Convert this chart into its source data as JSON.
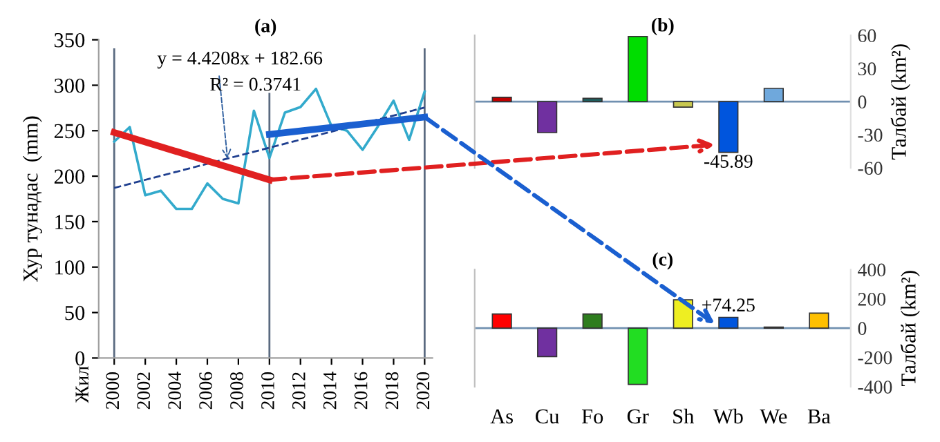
{
  "chart_data": [
    {
      "type": "line",
      "title": "(a)",
      "ylabel": "Хур тунадас  (mm)",
      "series": [
        {
          "color": "#33aacc",
          "line_style": "solid",
          "x": [
            2000,
            2001,
            2002,
            2003,
            2004,
            2005,
            2006,
            2007,
            2008,
            2009,
            2010,
            2011,
            2012,
            2013,
            2014,
            2015,
            2016,
            2017,
            2018,
            2019,
            2020
          ],
          "values": [
            238,
            254,
            179,
            184,
            164,
            164,
            192,
            175,
            170,
            272,
            220,
            270,
            276,
            296,
            255,
            250,
            229,
            255,
            283,
            240,
            293
          ]
        },
        {
          "color": "#1f3f8f",
          "line_style": "dashed",
          "x": [
            2000,
            2020
          ],
          "values": [
            187.1,
            275.5
          ]
        },
        {
          "color": "#e02020",
          "line_style": "solid",
          "x": [
            2000,
            2010
          ],
          "values": [
            248,
            196
          ]
        },
        {
          "color": "#1a5fd0",
          "line_style": "solid",
          "x": [
            2010,
            2020
          ],
          "values": [
            246,
            265
          ]
        }
      ],
      "ref_lines": [
        {
          "axis": "x",
          "value": 2000,
          "color": "#5a6a80"
        },
        {
          "axis": "x",
          "value": 2010,
          "color": "#5a6a80"
        },
        {
          "axis": "x",
          "value": 2020,
          "color": "#5a6a80"
        }
      ],
      "annotations": [
        {
          "text": "y = 4.4208x + 182.66",
          "x": 2007.3,
          "y": 219
        },
        "R² = 0.3741",
        "Жил"
      ],
      "xlim": [
        1999,
        2020.5
      ],
      "ylim": [
        0,
        350
      ],
      "xticks": [
        2000,
        2002,
        2004,
        2006,
        2008,
        2010,
        2012,
        2014,
        2016,
        2018,
        2020
      ],
      "yticks": [
        0,
        50,
        100,
        150,
        200,
        250,
        300,
        350
      ],
      "grid": false,
      "legend": false,
      "marker": "none"
    },
    {
      "type": "bar",
      "title": "(b)",
      "ylabel": "Талбай (km²)",
      "categories": [
        null,
        null,
        null,
        null,
        null,
        null,
        null,
        null
      ],
      "values": [
        4,
        -28,
        3,
        59,
        -5,
        -45.89,
        12,
        null
      ],
      "colors": [
        "#c00000",
        "#7030a0",
        "#1f5f5f",
        "#00dd00",
        "#c8c850",
        "#0055dd",
        "#6fa8dc",
        "#ffc000"
      ],
      "value_labels": [
        null,
        null,
        null,
        null,
        null,
        "-45.89",
        null,
        null
      ],
      "ref_lines": [
        {
          "axis": "y",
          "value": 0,
          "color": "#7090b0"
        }
      ],
      "ylim": [
        -60,
        60
      ],
      "yticks": [
        60,
        30,
        0,
        -30,
        -60
      ],
      "tick_labels": "y",
      "grid": false,
      "legend": false
    },
    {
      "type": "bar",
      "title": "(c)",
      "ylabel": "Талбай (km²)",
      "categories": [
        "As",
        "Cu",
        "Fo",
        "Gr",
        "Sh",
        "Wb",
        "We",
        "Ba"
      ],
      "values": [
        97,
        -194,
        97,
        -384,
        194,
        74.25,
        8,
        103
      ],
      "colors": [
        "#ff0000",
        "#7030a0",
        "#2e7d1e",
        "#22dd22",
        "#eeee22",
        "#0055dd",
        "#7f7f7f",
        "#ffc000"
      ],
      "value_labels": [
        null,
        null,
        null,
        null,
        null,
        "+74.25",
        null,
        null
      ],
      "ref_lines": [
        {
          "axis": "y",
          "value": 0,
          "color": "#7090b0"
        }
      ],
      "ylim": [
        -400,
        400
      ],
      "yticks": [
        400,
        200,
        0,
        -200,
        -400
      ],
      "grid": false,
      "legend": false
    }
  ]
}
